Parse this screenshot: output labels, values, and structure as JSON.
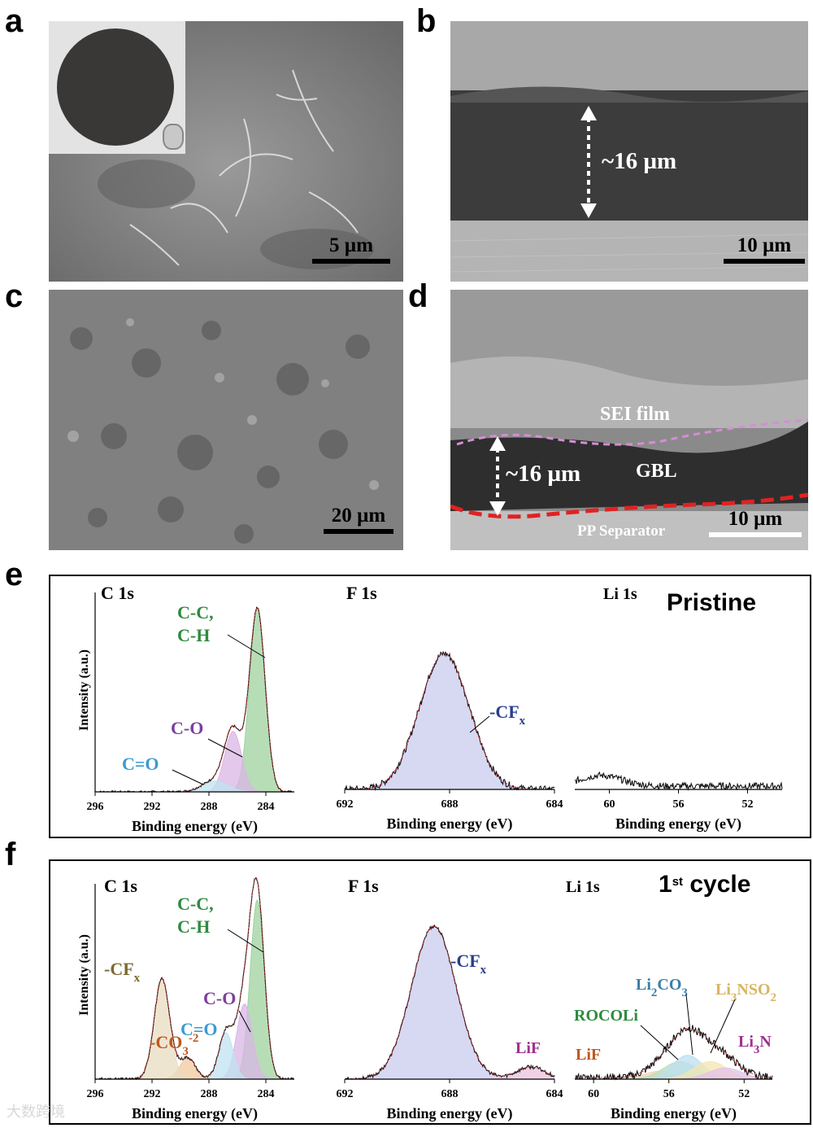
{
  "panels": {
    "a": {
      "letter": "a",
      "scale": "5 µm"
    },
    "b": {
      "letter": "b",
      "scale": "10 µm",
      "thickness": "~16 µm"
    },
    "c": {
      "letter": "c",
      "scale": "20 µm"
    },
    "d": {
      "letter": "d",
      "scale": "10 µm",
      "thickness": "~16 µm",
      "layers": {
        "sei": "SEI film",
        "gbl": "GBL",
        "separator": "PP Separator"
      }
    },
    "e": {
      "letter": "e",
      "condition": "Pristine"
    },
    "f": {
      "letter": "f",
      "condition_num": "1",
      "condition_sup": "st",
      "condition_rest": " cycle"
    }
  },
  "xps_common": {
    "ylabel": "Intensity (a.u.)",
    "xlabel": "Binding energy (eV)",
    "c_title": "C  1s",
    "f_title": "F  1s",
    "li_title": "Li  1s",
    "c_ticks": [
      "296",
      "292",
      "288",
      "284"
    ],
    "f_ticks": [
      "692",
      "688",
      "684"
    ],
    "li_ticks": [
      "60",
      "56",
      "52"
    ]
  },
  "e_labels": {
    "cc": "C-C,",
    "ch": "C-H",
    "co": "C-O",
    "c_eq_o": "C=O",
    "cfx": "-CF",
    "cfx_sub": "x"
  },
  "f_labels": {
    "cc": "C-C,",
    "ch": "C-H",
    "co": "C-O",
    "c_eq_o": "C=O",
    "cfx": "-CF",
    "cfx_sub": "x",
    "co3": "-CO",
    "co3_sub": "3",
    "co3_sup": "-2",
    "f_cfx": "-CF",
    "f_cfx_sub": "x",
    "lif": "LiF",
    "li2co3_a": "Li",
    "li2co3_sub": "2",
    "li2co3_b": "CO",
    "li2co3_sub2": "3",
    "li3nso2_a": "Li",
    "li3nso2_sub": "3",
    "li3nso2_b": "NSO",
    "li3nso2_sub2": "2",
    "rocoli": "ROCOLi",
    "li_lif": "LiF",
    "li3n_a": "Li",
    "li3n_sub": "3",
    "li3n_b": "N"
  },
  "chart_data": [
    {
      "type": "line",
      "title": "C  1s",
      "panel": "e",
      "xlabel": "Binding energy (eV)",
      "ylabel": "Intensity (a.u.)",
      "xlim": [
        296,
        282
      ],
      "x_reversed": true,
      "series": [
        {
          "name": "C-C, C-H",
          "center": 284.6,
          "height": 1.0,
          "width": 0.55,
          "color": "#9fd29f"
        },
        {
          "name": "C-O",
          "center": 286.3,
          "height": 0.33,
          "width": 0.6,
          "color": "#d9b6e6"
        },
        {
          "name": "C=O",
          "center": 287.6,
          "height": 0.06,
          "width": 0.9,
          "color": "#bfe3f0"
        }
      ]
    },
    {
      "type": "line",
      "title": "F  1s",
      "panel": "e",
      "xlabel": "Binding energy (eV)",
      "xlim": [
        692,
        684
      ],
      "x_reversed": true,
      "series": [
        {
          "name": "-CFx",
          "center": 688.2,
          "height": 1.0,
          "width": 0.95,
          "color": "#c9cbee"
        }
      ]
    },
    {
      "type": "line",
      "title": "Li  1s",
      "panel": "e",
      "xlabel": "Binding energy (eV)",
      "xlim": [
        62,
        50
      ],
      "x_reversed": true,
      "series": [
        {
          "name": "noise",
          "center": 60.5,
          "height": 0.25,
          "width": 1.2,
          "color": "none"
        }
      ]
    },
    {
      "type": "line",
      "title": "C  1s",
      "panel": "f",
      "xlabel": "Binding energy (eV)",
      "ylabel": "Intensity (a.u.)",
      "xlim": [
        296,
        282
      ],
      "x_reversed": true,
      "series": [
        {
          "name": "C-C, C-H",
          "center": 284.6,
          "height": 1.0,
          "width": 0.5,
          "color": "#9fd29f"
        },
        {
          "name": "C-O",
          "center": 285.5,
          "height": 0.42,
          "width": 0.55,
          "color": "#d9b6e6"
        },
        {
          "name": "C=O",
          "center": 286.8,
          "height": 0.26,
          "width": 0.5,
          "color": "#bfe3f0"
        },
        {
          "name": "-CO3-2",
          "center": 289.5,
          "height": 0.12,
          "width": 0.55,
          "color": "#f2c9a0"
        },
        {
          "name": "-CFx",
          "center": 291.3,
          "height": 0.56,
          "width": 0.55,
          "color": "#e8dcc0"
        }
      ]
    },
    {
      "type": "line",
      "title": "F  1s",
      "panel": "f",
      "xlabel": "Binding energy (eV)",
      "xlim": [
        692,
        684
      ],
      "x_reversed": true,
      "series": [
        {
          "name": "-CFx",
          "center": 688.6,
          "height": 1.0,
          "width": 0.85,
          "color": "#c9cbee"
        },
        {
          "name": "LiF",
          "center": 684.9,
          "height": 0.08,
          "width": 0.55,
          "color": "#e9c1de"
        }
      ]
    },
    {
      "type": "line",
      "title": "Li  1s",
      "panel": "f",
      "xlabel": "Binding energy (eV)",
      "xlim": [
        61,
        50.5
      ],
      "x_reversed": true,
      "series": [
        {
          "name": "LiF",
          "center": 56.5,
          "height": 0.1,
          "width": 0.8,
          "color": "#f2d3b0"
        },
        {
          "name": "ROCOLi",
          "center": 55.4,
          "height": 0.22,
          "width": 0.9,
          "color": "#b7e0b7"
        },
        {
          "name": "Li2CO3",
          "center": 55.0,
          "height": 0.3,
          "width": 0.8,
          "color": "#bcdff0"
        },
        {
          "name": "Li3NSO2",
          "center": 53.8,
          "height": 0.22,
          "width": 0.9,
          "color": "#f3e6b0"
        },
        {
          "name": "Li3N",
          "center": 53.0,
          "height": 0.14,
          "width": 0.9,
          "color": "#e4c2ea"
        }
      ]
    }
  ],
  "watermark": "大数跨境"
}
